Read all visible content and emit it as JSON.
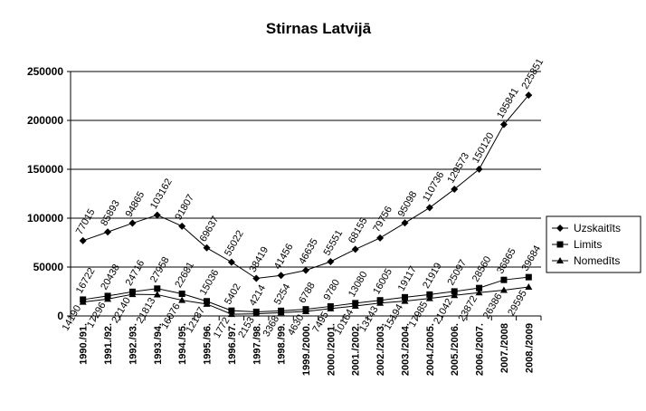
{
  "chart_data": {
    "type": "line",
    "title": "Stirnas Latvijā",
    "xlabel": "",
    "ylabel": "",
    "ylim": [
      0,
      250000
    ],
    "yticks": [
      "0",
      "50000",
      "100000",
      "150000",
      "200000",
      "250000"
    ],
    "grid": "horizontal",
    "legend_position": "right",
    "categories": [
      "1990./91.",
      "1991./92.",
      "1992./93.",
      "1993./94.",
      "1994./95.",
      "1995./96.",
      "1996./97.",
      "1997./98.",
      "1998./99.",
      "1999./2000.",
      "2000./2001.",
      "2001./2002.",
      "2002./2003.",
      "2003./2004.",
      "2004./2005.",
      "2005./2006.",
      "2006./2007.",
      "2007./2008",
      "2008./2009"
    ],
    "series": [
      {
        "name": "Uzskaitīts",
        "marker": "diamond",
        "values": [
          77015,
          85893,
          94865,
          103162,
          91807,
          69637,
          55022,
          38419,
          41456,
          46635,
          55551,
          68155,
          79756,
          95098,
          110736,
          129573,
          150120,
          195841,
          225851
        ],
        "labels": [
          "77015",
          "85893",
          "94865",
          "103162",
          "91807",
          "69637",
          "55022",
          "38419",
          "41456",
          "46635",
          "55551",
          "68155",
          "79756",
          "95098",
          "110736",
          "129573",
          "150120",
          "195841",
          "225851"
        ]
      },
      {
        "name": "Limits",
        "marker": "square",
        "values": [
          16722,
          20438,
          24716,
          27958,
          22681,
          15036,
          5402,
          4214,
          5254,
          6788,
          9780,
          13080,
          16005,
          19117,
          21919,
          25097,
          28560,
          36865,
          39684
        ],
        "labels": [
          "16722",
          "20438",
          "24716",
          "27958",
          "22681",
          "15036",
          "5402",
          "4214",
          "5254",
          "6788",
          "9780",
          "13080",
          "16005",
          "19117",
          "21919",
          "25097",
          "28560",
          "36865",
          "39684"
        ]
      },
      {
        "name": "Nomedīts",
        "marker": "triangle",
        "values": [
          14190,
          17296,
          22140,
          21813,
          16076,
          12187,
          1772,
          2153,
          3368,
          4630,
          7495,
          10164,
          13143,
          15194,
          17985,
          21042,
          23872,
          26386,
          29595
        ],
        "labels": [
          "14190",
          "17296",
          "22140",
          "21813",
          "16076",
          "12187",
          "1772",
          "2153",
          "3368",
          "4630",
          "7495",
          "10164",
          "13143",
          "15194",
          "17985",
          "21042",
          "23872",
          "26386",
          "29595"
        ]
      }
    ]
  }
}
